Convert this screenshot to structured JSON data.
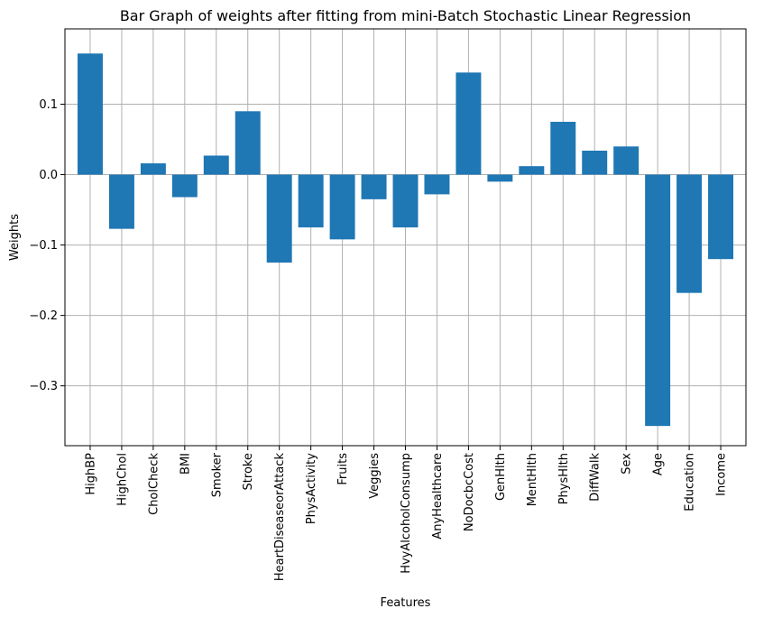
{
  "chart_data": {
    "type": "bar",
    "title": "Bar Graph of weights after fitting from mini-Batch Stochastic Linear Regression",
    "xlabel": "Features",
    "ylabel": "Weights",
    "categories": [
      "HighBP",
      "HighChol",
      "CholCheck",
      "BMI",
      "Smoker",
      "Stroke",
      "HeartDiseaseorAttack",
      "PhysActivity",
      "Fruits",
      "Veggies",
      "HvyAlcoholConsump",
      "AnyHealthcare",
      "NoDocbcCost",
      "GenHlth",
      "MentHlth",
      "PhysHlth",
      "DiffWalk",
      "Sex",
      "Age",
      "Education",
      "Income"
    ],
    "values": [
      0.172,
      -0.077,
      0.016,
      -0.032,
      0.027,
      0.09,
      -0.125,
      -0.075,
      -0.092,
      -0.035,
      -0.075,
      -0.028,
      0.145,
      -0.01,
      0.012,
      0.075,
      0.034,
      0.04,
      -0.357,
      -0.168,
      -0.12
    ],
    "ylim": [
      -0.385,
      0.207
    ],
    "yticks": [
      -0.3,
      -0.2,
      -0.1,
      0.0,
      0.1
    ],
    "ytick_labels": [
      "−0.3",
      "−0.2",
      "−0.1",
      "0.0",
      "0.1"
    ],
    "grid": true,
    "bar_color": "#1f77b4",
    "grid_color": "#b0b0b0"
  }
}
